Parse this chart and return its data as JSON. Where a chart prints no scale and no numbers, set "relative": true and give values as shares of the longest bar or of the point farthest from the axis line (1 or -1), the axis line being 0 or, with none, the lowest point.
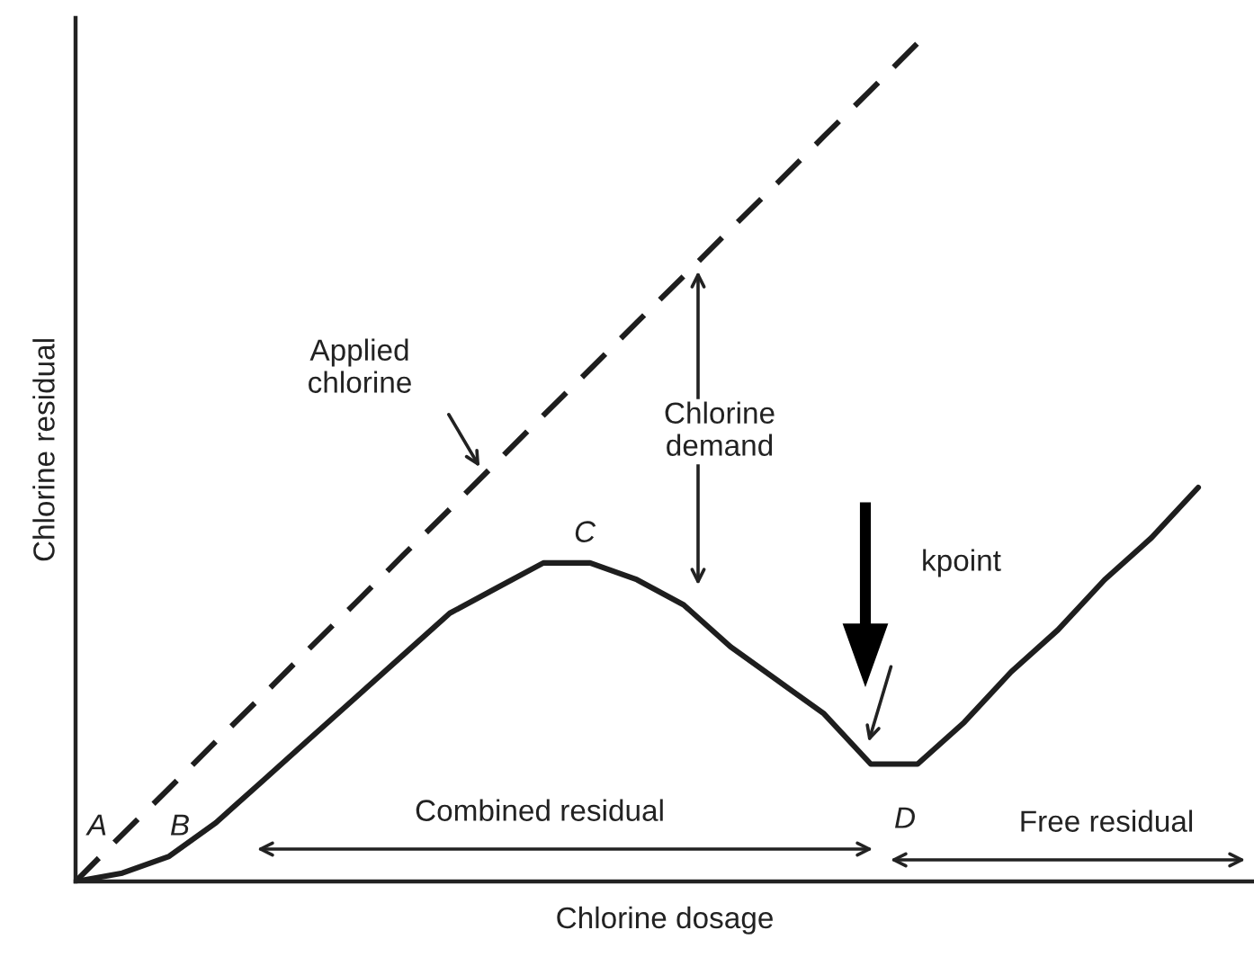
{
  "chart_data": {
    "type": "line",
    "relative": true,
    "xlabel": "Chlorine dosage",
    "ylabel": "Chlorine residual",
    "categories": [
      null,
      null,
      null,
      null,
      null,
      null,
      null,
      null,
      null,
      null,
      null,
      null,
      null,
      null,
      null,
      null,
      null,
      null,
      null,
      null,
      null,
      null,
      null,
      null,
      null
    ],
    "series": [
      {
        "color": "#1e1e1e",
        "line_style": "dashed",
        "values": [
          0,
          0.056,
          0.111,
          0.167,
          0.222,
          0.278,
          0.333,
          0.389,
          0.444,
          0.5,
          0.556,
          0.611,
          0.667,
          0.722,
          0.778,
          0.833,
          0.889,
          0.944,
          1.0,
          null,
          null,
          null,
          null,
          null,
          null
        ]
      },
      {
        "color": "#1e1e1e",
        "line_style": "solid",
        "values": [
          0,
          0.01,
          0.03,
          0.07,
          0.12,
          0.17,
          0.22,
          0.27,
          0.32,
          0.35,
          0.38,
          0.38,
          0.36,
          0.33,
          0.28,
          0.24,
          0.2,
          0.14,
          0.14,
          0.19,
          0.25,
          0.3,
          0.36,
          0.41,
          0.47
        ]
      }
    ],
    "annotations": [
      "Applied\nchlorine",
      "Chlorine\ndemand",
      "C",
      "kpoint",
      "A",
      "B",
      "Combined residual",
      "D",
      "Free residual"
    ],
    "legend": false,
    "tick_labels": false
  }
}
